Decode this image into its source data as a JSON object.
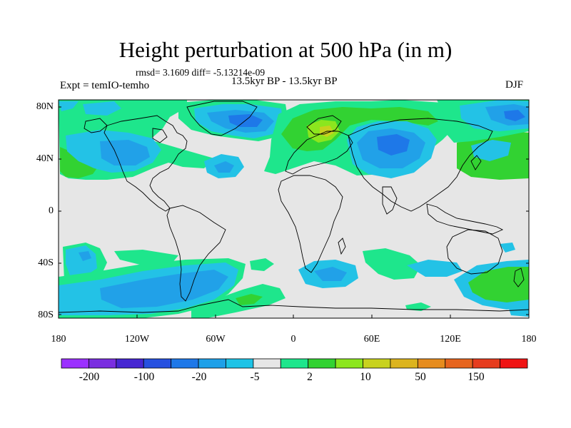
{
  "title": "Height perturbation at 500 hPa (in m)",
  "stats_line": "rmsd= 3.1609 diff= -5.13214e-09",
  "experiment": "Expt = temIO-temho",
  "period": "13.5kyr BP - 13.5kyr BP",
  "season": "DJF",
  "lat_labels": [
    "80N",
    "40N",
    "0",
    "40S",
    "80S"
  ],
  "lon_labels": [
    "180",
    "120W",
    "60W",
    "0",
    "60E",
    "120E",
    "180"
  ],
  "colorbar": {
    "labels": [
      "-200",
      "-100",
      "-20",
      "-5",
      "2",
      "10",
      "50",
      "150"
    ],
    "colors": [
      "#9b30ff",
      "#7a2ee0",
      "#4626d2",
      "#2650e0",
      "#1e78e8",
      "#1ea0e8",
      "#1ec3e6",
      "#e6e6e6",
      "#1ee68c",
      "#32d232",
      "#8ce61e",
      "#c8d21e",
      "#dcb41e",
      "#e68c1e",
      "#e6641e",
      "#e63c1e",
      "#f01414"
    ]
  },
  "colors": {
    "background_neutral": "#e6e6e6",
    "light_blue": "#23c2e6",
    "mid_blue": "#21a1e8",
    "deep_blue": "#1e78e8",
    "teal_green": "#1ee68c",
    "green": "#32d232",
    "yellow_green": "#8ce61e"
  }
}
